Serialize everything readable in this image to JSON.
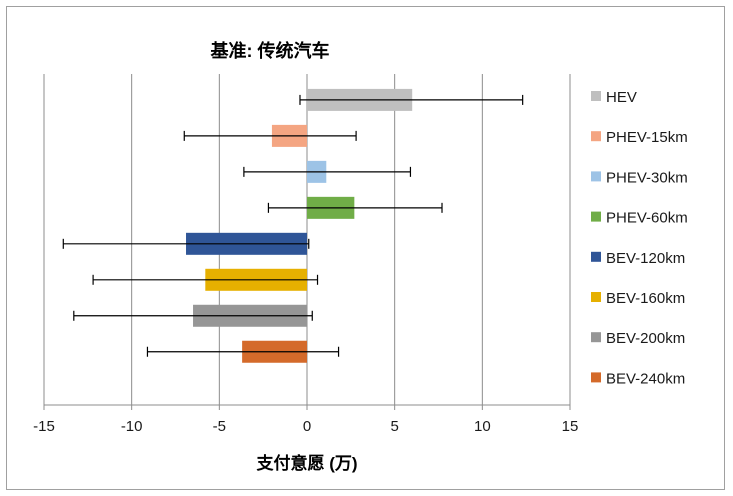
{
  "chart_data": {
    "type": "bar",
    "orientation": "horizontal",
    "title": "基准: 传统汽车",
    "xlabel": "支付意愿 (万)",
    "xlim": [
      -15,
      15
    ],
    "xticks": [
      -15,
      -10,
      -5,
      0,
      5,
      10,
      15
    ],
    "grid": "vertical",
    "legend_position": "right",
    "series": [
      {
        "name": "HEV",
        "value": 6.0,
        "err_low": -0.4,
        "err_high": 12.3,
        "color": "#bfbfbf"
      },
      {
        "name": "PHEV-15km",
        "value": -2.0,
        "err_low": -7.0,
        "err_high": 2.8,
        "color": "#f4a582"
      },
      {
        "name": "PHEV-30km",
        "value": 1.1,
        "err_low": -3.6,
        "err_high": 5.9,
        "color": "#9dc3e6"
      },
      {
        "name": "PHEV-60km",
        "value": 2.7,
        "err_low": -2.2,
        "err_high": 7.7,
        "color": "#70ad47"
      },
      {
        "name": "BEV-120km",
        "value": -6.9,
        "err_low": -13.9,
        "err_high": 0.1,
        "color": "#2f5597"
      },
      {
        "name": "BEV-160km",
        "value": -5.8,
        "err_low": -12.2,
        "err_high": 0.6,
        "color": "#e6b000"
      },
      {
        "name": "BEV-200km",
        "value": -6.5,
        "err_low": -13.3,
        "err_high": 0.3,
        "color": "#969696"
      },
      {
        "name": "BEV-240km",
        "value": -3.7,
        "err_low": -9.1,
        "err_high": 1.8,
        "color": "#d46a2a"
      }
    ]
  }
}
